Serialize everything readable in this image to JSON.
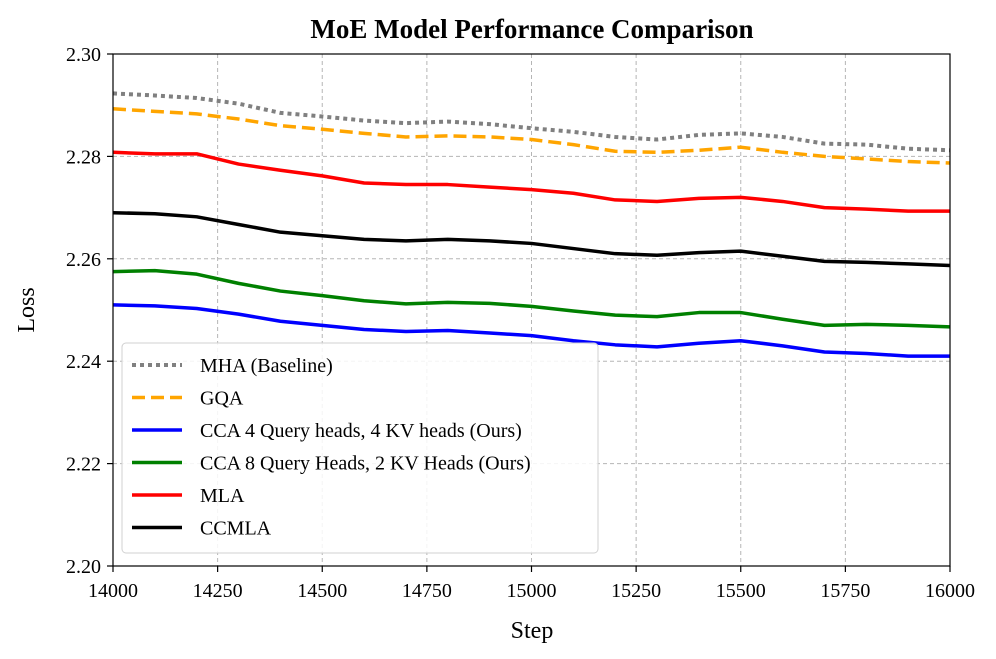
{
  "chart_data": {
    "type": "line",
    "title": "MoE Model Performance Comparison",
    "xlabel": "Step",
    "ylabel": "Loss",
    "xlim": [
      14000,
      16000
    ],
    "ylim": [
      2.2,
      2.3
    ],
    "xticks": [
      14000,
      14250,
      14500,
      14750,
      15000,
      15250,
      15500,
      15750,
      16000
    ],
    "xtick_labels": [
      "14000",
      "14250",
      "14500",
      "14750",
      "15000",
      "15250",
      "15500",
      "15750",
      "16000"
    ],
    "yticks": [
      2.2,
      2.22,
      2.24,
      2.26,
      2.28,
      2.3
    ],
    "ytick_labels": [
      "2.20",
      "2.22",
      "2.24",
      "2.26",
      "2.28",
      "2.30"
    ],
    "grid": true,
    "legend_position": "lower-left",
    "series": [
      {
        "name": "MHA (Baseline)",
        "color": "#808080",
        "style": "dotted",
        "x": [
          14000,
          14100,
          14200,
          14300,
          14400,
          14500,
          14600,
          14700,
          14800,
          14900,
          15000,
          15100,
          15200,
          15300,
          15400,
          15500,
          15600,
          15700,
          15800,
          15900,
          16000
        ],
        "y": [
          2.2923,
          2.2919,
          2.2914,
          2.2903,
          2.2885,
          2.2878,
          2.287,
          2.2865,
          2.2868,
          2.2863,
          2.2855,
          2.2848,
          2.2838,
          2.2833,
          2.2842,
          2.2845,
          2.2838,
          2.2825,
          2.2823,
          2.2815,
          2.2812
        ]
      },
      {
        "name": "GQA",
        "color": "#FFA500",
        "style": "dashed",
        "x": [
          14000,
          14100,
          14200,
          14300,
          14400,
          14500,
          14600,
          14700,
          14800,
          14900,
          15000,
          15100,
          15200,
          15300,
          15400,
          15500,
          15600,
          15700,
          15800,
          15900,
          16000
        ],
        "y": [
          2.2893,
          2.2888,
          2.2883,
          2.2873,
          2.286,
          2.2853,
          2.2845,
          2.2838,
          2.284,
          2.2838,
          2.2833,
          2.2823,
          2.281,
          2.2808,
          2.2812,
          2.2818,
          2.2808,
          2.28,
          2.2795,
          2.279,
          2.2787
        ]
      },
      {
        "name": "CCA 4 Query heads, 4 KV heads (Ours)",
        "color": "#0000FF",
        "style": "solid",
        "x": [
          14000,
          14100,
          14200,
          14300,
          14400,
          14500,
          14600,
          14700,
          14800,
          14900,
          15000,
          15100,
          15200,
          15300,
          15400,
          15500,
          15600,
          15700,
          15800,
          15900,
          16000
        ],
        "y": [
          2.251,
          2.2508,
          2.2503,
          2.2492,
          2.2478,
          2.247,
          2.2462,
          2.2458,
          2.246,
          2.2455,
          2.245,
          2.244,
          2.2432,
          2.2428,
          2.2435,
          2.244,
          2.243,
          2.2418,
          2.2415,
          2.241,
          2.241
        ]
      },
      {
        "name": "CCA 8 Query Heads, 2 KV Heads (Ours)",
        "color": "#008000",
        "style": "solid",
        "x": [
          14000,
          14100,
          14200,
          14300,
          14400,
          14500,
          14600,
          14700,
          14800,
          14900,
          15000,
          15100,
          15200,
          15300,
          15400,
          15500,
          15600,
          15700,
          15800,
          15900,
          16000
        ],
        "y": [
          2.2575,
          2.2577,
          2.257,
          2.2552,
          2.2537,
          2.2528,
          2.2518,
          2.2512,
          2.2515,
          2.2513,
          2.2507,
          2.2498,
          2.249,
          2.2487,
          2.2495,
          2.2495,
          2.2482,
          2.247,
          2.2472,
          2.247,
          2.2467
        ]
      },
      {
        "name": "MLA",
        "color": "#FF0000",
        "style": "solid",
        "x": [
          14000,
          14100,
          14200,
          14300,
          14400,
          14500,
          14600,
          14700,
          14800,
          14900,
          15000,
          15100,
          15200,
          15300,
          15400,
          15500,
          15600,
          15700,
          15800,
          15900,
          16000
        ],
        "y": [
          2.2808,
          2.2805,
          2.2805,
          2.2785,
          2.2773,
          2.2762,
          2.2748,
          2.2745,
          2.2745,
          2.274,
          2.2735,
          2.2728,
          2.2715,
          2.2712,
          2.2718,
          2.272,
          2.2712,
          2.27,
          2.2697,
          2.2693,
          2.2693
        ]
      },
      {
        "name": "CCMLA",
        "color": "#000000",
        "style": "solid",
        "x": [
          14000,
          14100,
          14200,
          14300,
          14400,
          14500,
          14600,
          14700,
          14800,
          14900,
          15000,
          15100,
          15200,
          15300,
          15400,
          15500,
          15600,
          15700,
          15800,
          15900,
          16000
        ],
        "y": [
          2.269,
          2.2688,
          2.2682,
          2.2667,
          2.2652,
          2.2645,
          2.2638,
          2.2635,
          2.2638,
          2.2635,
          2.263,
          2.262,
          2.261,
          2.2607,
          2.2612,
          2.2615,
          2.2605,
          2.2595,
          2.2593,
          2.259,
          2.2587
        ]
      }
    ]
  }
}
